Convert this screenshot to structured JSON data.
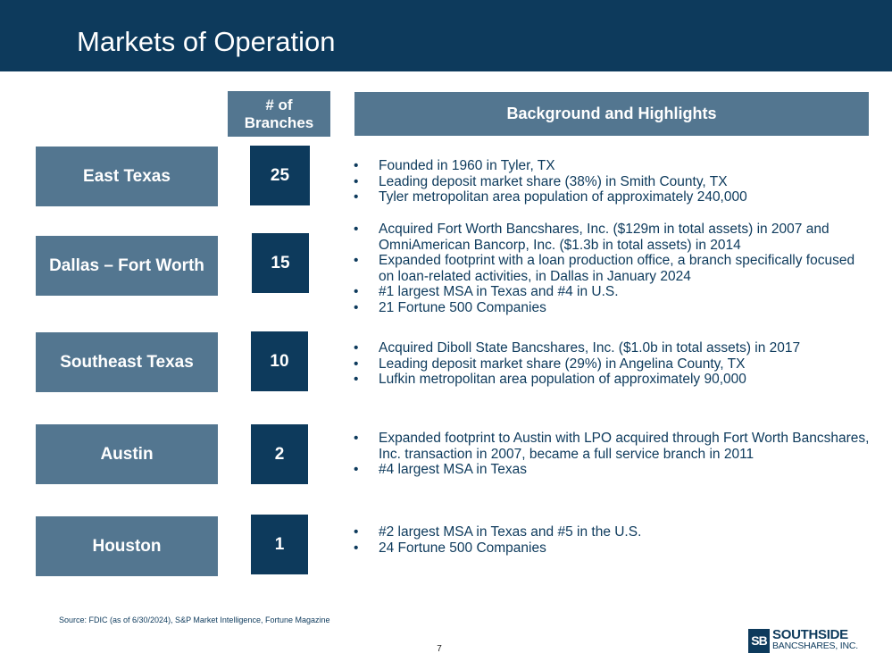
{
  "header": {
    "title": "Markets of Operation"
  },
  "columns": {
    "branches_line1": "# of",
    "branches_line2": "Branches",
    "background": "Background and Highlights"
  },
  "markets": [
    {
      "name": "East Texas",
      "branches": "25",
      "highlights": [
        "Founded in 1960 in Tyler, TX",
        "Leading deposit market share (38%) in Smith County, TX",
        "Tyler metropolitan area population of approximately 240,000"
      ]
    },
    {
      "name": "Dallas – Fort Worth",
      "branches": "15",
      "highlights": [
        "Acquired Fort Worth Bancshares, Inc. ($129m in total assets) in 2007 and OmniAmerican Bancorp, Inc. ($1.3b in total assets) in 2014",
        "Expanded footprint with a loan production office, a branch specifically focused on loan-related activities, in Dallas in January 2024",
        "#1 largest MSA in Texas and #4 in U.S.",
        "21 Fortune 500 Companies"
      ]
    },
    {
      "name": "Southeast Texas",
      "branches": "10",
      "highlights": [
        "Acquired Diboll State Bancshares, Inc. ($1.0b in total assets) in 2017",
        "Leading deposit market share (29%) in Angelina County, TX",
        "Lufkin metropolitan area population of approximately 90,000"
      ]
    },
    {
      "name": "Austin",
      "branches": "2",
      "highlights": [
        "Expanded footprint to Austin with LPO acquired through Fort Worth Bancshares, Inc. transaction in 2007, became a full service branch in 2011",
        "#4 largest MSA in Texas"
      ]
    },
    {
      "name": "Houston",
      "branches": "1",
      "highlights": [
        "#2 largest MSA in Texas and #5 in the U.S.",
        "24 Fortune 500 Companies"
      ]
    }
  ],
  "footer": {
    "source": "Source: FDIC (as of 6/30/2024), S&P Market Intelligence, Fortune Magazine",
    "page_number": "7",
    "logo_mark": "SB",
    "logo_line1": "SOUTHSIDE",
    "logo_line2": "BANCSHARES, INC."
  },
  "colors": {
    "navy": "#0d3a5c",
    "steel_blue": "#537690"
  }
}
